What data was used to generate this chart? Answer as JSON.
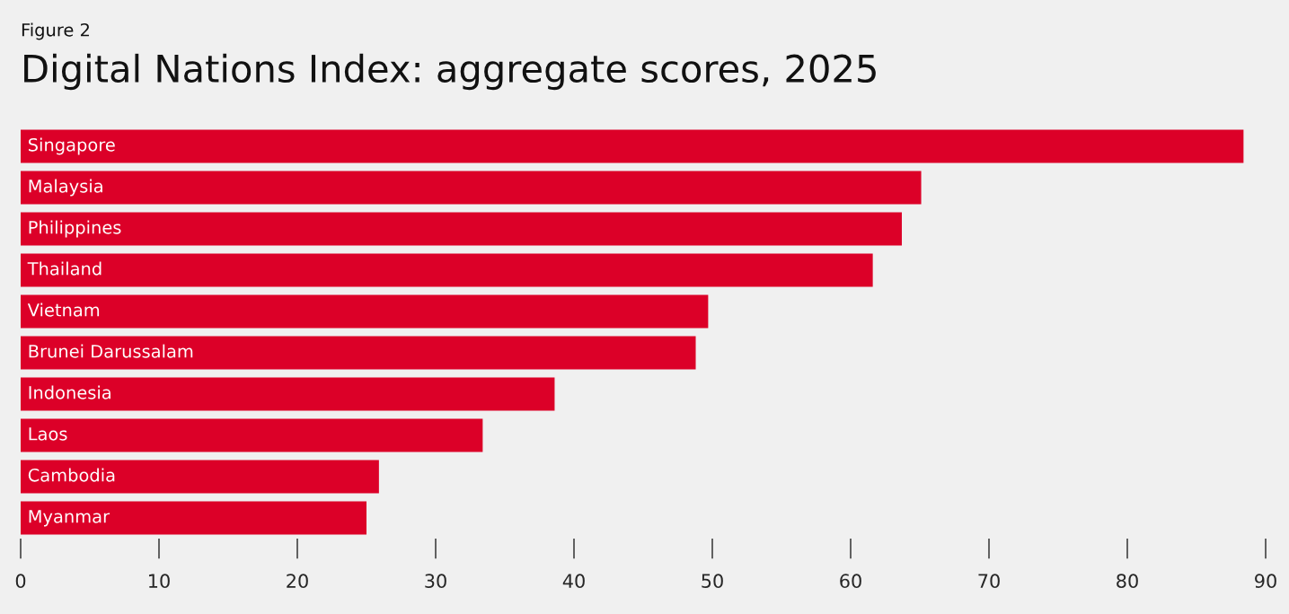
{
  "chart_data": {
    "type": "bar",
    "orientation": "horizontal",
    "title": "Digital Nations Index: aggregate scores, 2025",
    "subtitle": "Figure 2",
    "categories": [
      "Singapore",
      "Malaysia",
      "Philippines",
      "Thailand",
      "Vietnam",
      "Brunei Darussalam",
      "Indonesia",
      "Laos",
      "Cambodia",
      "Myanmar"
    ],
    "values": [
      88.4,
      65.1,
      63.7,
      61.6,
      49.7,
      48.8,
      38.6,
      33.4,
      25.9,
      25.0
    ],
    "color": "#dc0028",
    "xlim": [
      0,
      90
    ],
    "xticks": [
      0,
      10,
      20,
      30,
      40,
      50,
      60,
      70,
      80,
      90
    ],
    "grid": false,
    "legend": false
  }
}
